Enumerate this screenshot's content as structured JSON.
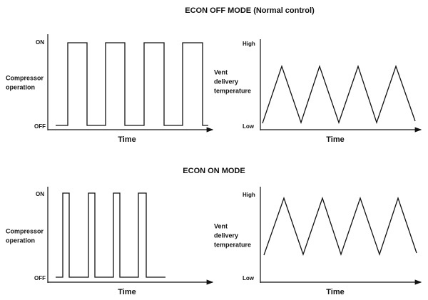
{
  "sections": [
    {
      "title": "ECON OFF MODE (Normal control)",
      "compressor": {
        "label": [
          "Compressor",
          "operation"
        ],
        "on": "ON",
        "off": "OFF",
        "x_label": "Time"
      },
      "vent": {
        "label": [
          "Vent",
          "delivery",
          "temperature"
        ],
        "high": "High",
        "low": "Low",
        "x_label": "Time"
      }
    },
    {
      "title": "ECON ON MODE",
      "compressor": {
        "label": [
          "Compressor",
          "operation"
        ],
        "on": "ON",
        "off": "OFF",
        "x_label": "Time"
      },
      "vent": {
        "label": [
          "Vent",
          "delivery",
          "temperature"
        ],
        "high": "High",
        "low": "Low",
        "x_label": "Time"
      }
    }
  ]
}
